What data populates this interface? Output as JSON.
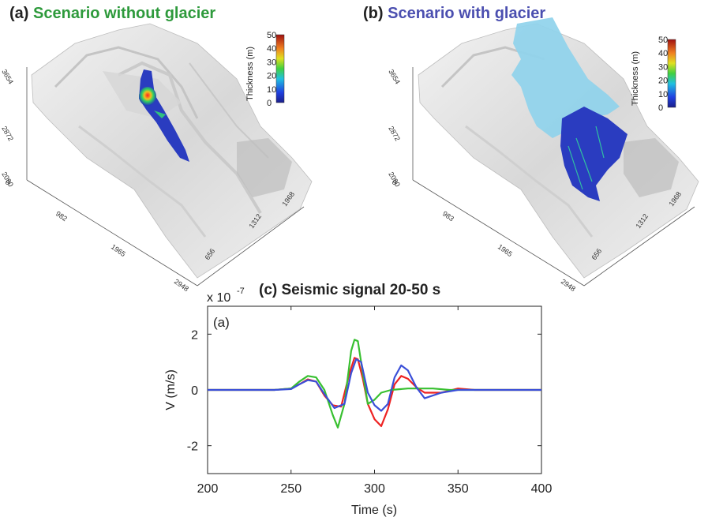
{
  "panels": {
    "a": {
      "letter": "(a)",
      "title": "Scenario without glacier",
      "colorbar_label": "Thickness (m)",
      "colorbar_ticks": [
        "50",
        "40",
        "30",
        "20",
        "10",
        "0"
      ],
      "z_ticks": [
        "3654",
        "2872",
        "2090"
      ],
      "x_ticks": [
        "0",
        "982",
        "1965",
        "2948"
      ],
      "y_ticks": [
        "656",
        "1312",
        "1968"
      ]
    },
    "b": {
      "letter": "(b)",
      "title": "Scenario with glacier",
      "colorbar_label": "Thickness (m)",
      "colorbar_ticks": [
        "50",
        "40",
        "30",
        "20",
        "10",
        "0"
      ],
      "z_ticks": [
        "3654",
        "2872",
        "2090"
      ],
      "x_ticks": [
        "0",
        "983",
        "1965",
        "2948"
      ],
      "y_ticks": [
        "656",
        "1312",
        "1968"
      ]
    },
    "c": {
      "title": "(c) Seismic signal 20-50 s",
      "exponent": "x 10",
      "exponent_power": "-7",
      "inner_label": "(a)"
    }
  },
  "colors": {
    "green": "#38c030",
    "blue": "#3a4fd8",
    "red": "#ee2222",
    "glacier": "#8fd3ec"
  },
  "chart_data": {
    "type": "line",
    "title": "(c) Seismic signal 20-50 s",
    "xlabel": "Time (s)",
    "ylabel": "V (m/s)",
    "y_multiplier": "x 10^-7",
    "xlim": [
      200,
      400
    ],
    "ylim": [
      -3,
      3
    ],
    "x_ticks": [
      200,
      250,
      300,
      350,
      400
    ],
    "y_ticks": [
      -2,
      0,
      2
    ],
    "series": [
      {
        "color": "#ee2222",
        "x": [
          200,
          240,
          250,
          255,
          260,
          265,
          270,
          275,
          280,
          285,
          288,
          290,
          293,
          296,
          300,
          304,
          308,
          312,
          316,
          320,
          325,
          330,
          340,
          350,
          360,
          370,
          400
        ],
        "y": [
          0,
          0,
          0.05,
          0.2,
          0.38,
          0.3,
          -0.2,
          -0.55,
          -0.6,
          0.6,
          1.15,
          1.1,
          0.4,
          -0.5,
          -1.05,
          -1.3,
          -0.7,
          0.2,
          0.5,
          0.4,
          0.1,
          -0.1,
          -0.1,
          0.05,
          0,
          0,
          0
        ]
      },
      {
        "color": "#38c030",
        "x": [
          200,
          240,
          250,
          255,
          260,
          265,
          270,
          275,
          278,
          282,
          286,
          288,
          290,
          293,
          296,
          300,
          304,
          310,
          320,
          335,
          345,
          360,
          400
        ],
        "y": [
          0,
          0,
          0.05,
          0.3,
          0.5,
          0.45,
          0,
          -0.9,
          -1.35,
          -0.5,
          1.4,
          1.8,
          1.75,
          0.6,
          -0.5,
          -0.35,
          -0.1,
          0,
          0.05,
          0.05,
          0,
          0,
          0
        ]
      },
      {
        "color": "#3a4fd8",
        "x": [
          200,
          240,
          250,
          255,
          260,
          265,
          270,
          276,
          282,
          286,
          289,
          292,
          296,
          300,
          304,
          308,
          312,
          316,
          320,
          325,
          330,
          340,
          350,
          360,
          400
        ],
        "y": [
          0,
          0,
          0.03,
          0.2,
          0.35,
          0.3,
          -0.15,
          -0.65,
          -0.5,
          0.6,
          1.1,
          1.0,
          -0.1,
          -0.55,
          -0.75,
          -0.5,
          0.45,
          0.88,
          0.7,
          0.1,
          -0.3,
          -0.1,
          0,
          0,
          0
        ]
      }
    ]
  }
}
